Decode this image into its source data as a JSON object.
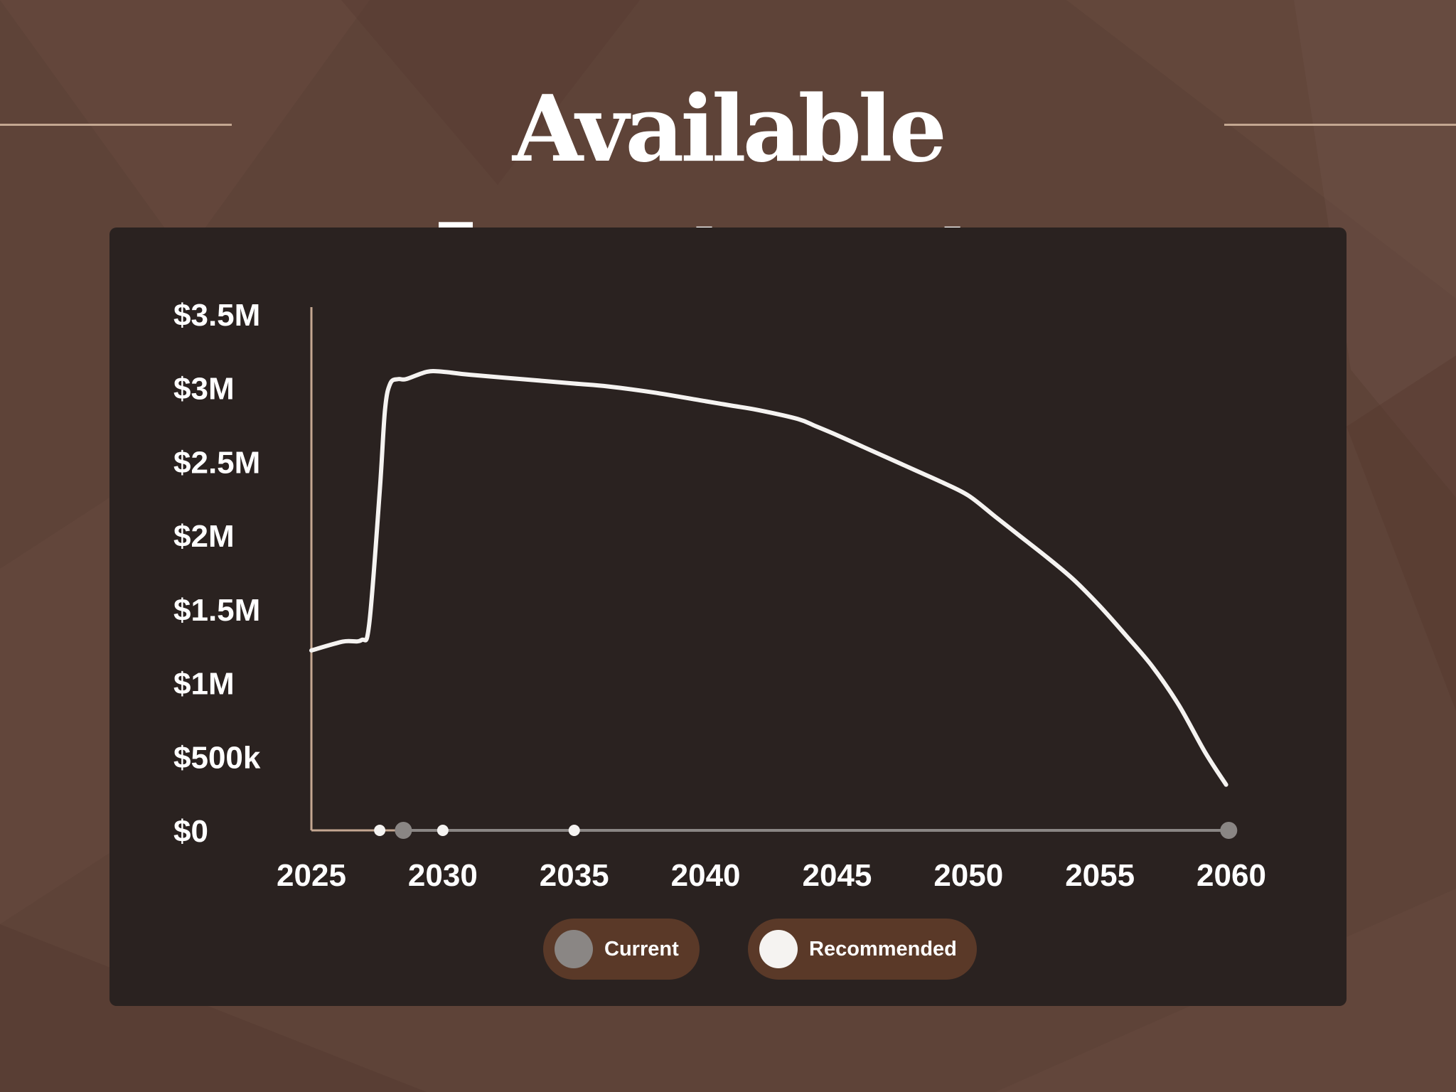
{
  "page": {
    "title": "Available Investments",
    "colors": {
      "background": "#5e4338",
      "panel": "#2a2220",
      "accent_rule": "#c4a791",
      "legend_pill": "#5a3928"
    }
  },
  "chart_data": {
    "type": "line",
    "title": "",
    "xlabel": "",
    "ylabel": "",
    "xlim": [
      2025,
      2060
    ],
    "ylim": [
      0,
      3500000
    ],
    "x_ticks": [
      2025,
      2030,
      2035,
      2040,
      2045,
      2050,
      2055,
      2060
    ],
    "x_tick_labels": [
      "2025",
      "2030",
      "2035",
      "2040",
      "2045",
      "2050",
      "2055",
      "2060"
    ],
    "y_ticks": [
      0,
      500000,
      1000000,
      1500000,
      2000000,
      2500000,
      3000000,
      3500000
    ],
    "y_tick_labels": [
      "$0",
      "$500k",
      "$1M",
      "$1.5M",
      "$2M",
      "$2.5M",
      "$3M",
      "$3.5M"
    ],
    "grid": false,
    "legend_position": "bottom-center",
    "series": [
      {
        "name": "Current",
        "color": "#8a8684",
        "x": [
          2025,
          2028.5,
          2059.9
        ],
        "y": [
          0,
          0,
          0
        ],
        "markers": [
          2028.5,
          2059.9
        ]
      },
      {
        "name": "Recommended",
        "color": "#f5f3f1",
        "x": [
          2025,
          2026.2,
          2026.9,
          2027.2,
          2027.6,
          2027.8,
          2028.0,
          2028.3,
          2028.6,
          2029.4,
          2030.0,
          2031.0,
          2033.0,
          2035.0,
          2036.3,
          2038.0,
          2040.0,
          2041.0,
          2042.0,
          2043.5,
          2044.2,
          2045.0,
          2046.0,
          2047.0,
          2048.0,
          2049.0,
          2050.0,
          2051.0,
          2052.0,
          2053.0,
          2054.0,
          2055.0,
          2056.0,
          2057.0,
          2058.0,
          2059.0,
          2059.8
        ],
        "y": [
          1220000,
          1280000,
          1290000,
          1400000,
          2300000,
          2850000,
          3030000,
          3060000,
          3060000,
          3110000,
          3110000,
          3090000,
          3060000,
          3030000,
          3010000,
          2970000,
          2910000,
          2880000,
          2850000,
          2790000,
          2740000,
          2680000,
          2600000,
          2520000,
          2440000,
          2360000,
          2270000,
          2130000,
          1990000,
          1850000,
          1700000,
          1520000,
          1320000,
          1110000,
          850000,
          530000,
          310000
        ],
        "markers": [
          2027.6,
          2030.0,
          2035.0
        ]
      }
    ]
  }
}
